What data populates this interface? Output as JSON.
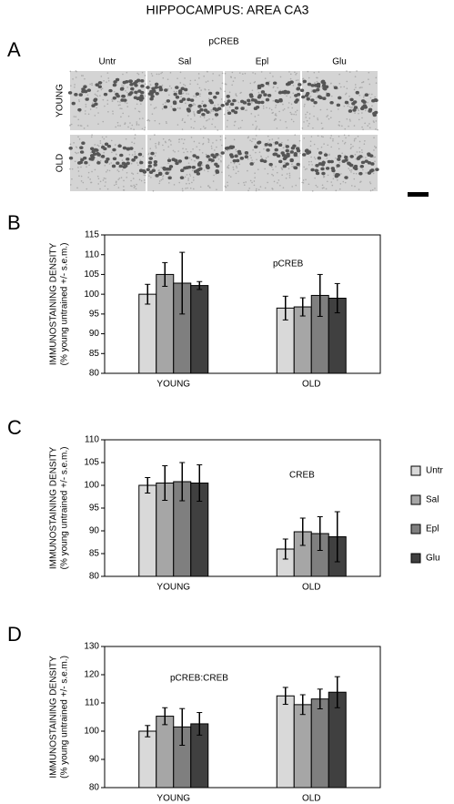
{
  "figure": {
    "title": "HIPPOCAMPUS: AREA CA3",
    "panel_a": {
      "label": "A",
      "title": "pCREB",
      "columns": [
        "Untr",
        "Sal",
        "Epl",
        "Glu"
      ],
      "rows": [
        "YOUNG",
        "OLD"
      ]
    }
  },
  "chart_data": [
    {
      "type": "bar",
      "panel": "B",
      "annotation": "pCREB",
      "ylabel": [
        "IMMUNOSTAINING DENSITY",
        "(% young untrained +/- s.e.m.)"
      ],
      "categories": [
        "YOUNG",
        "OLD"
      ],
      "ylim": [
        80,
        115
      ],
      "yticks": [
        80,
        85,
        90,
        95,
        100,
        105,
        110,
        115
      ],
      "series": [
        {
          "color": "#d9d9d9",
          "values": [
            100,
            96.5
          ],
          "errors": [
            2.5,
            3
          ]
        },
        {
          "color": "#a6a6a6",
          "values": [
            105,
            96.8
          ],
          "errors": [
            3,
            2.3
          ]
        },
        {
          "color": "#7f7f7f",
          "values": [
            102.8,
            99.7
          ],
          "errors": [
            7.8,
            5.3
          ]
        },
        {
          "color": "#404040",
          "values": [
            102.2,
            99
          ],
          "errors": [
            1,
            3.7
          ]
        }
      ]
    },
    {
      "type": "bar",
      "panel": "C",
      "annotation": "CREB",
      "ylabel": [
        "IMMUNOSTAINING DENSITY",
        "(% young untrained +/- s.e.m.)"
      ],
      "categories": [
        "YOUNG",
        "OLD"
      ],
      "ylim": [
        80,
        110
      ],
      "yticks": [
        80,
        85,
        90,
        95,
        100,
        105,
        110
      ],
      "legend": "right",
      "series": [
        {
          "name": "Untr",
          "color": "#d9d9d9",
          "values": [
            100,
            86
          ],
          "errors": [
            1.7,
            2.2
          ]
        },
        {
          "name": "Sal",
          "color": "#a6a6a6",
          "values": [
            100.5,
            89.8
          ],
          "errors": [
            3.8,
            3
          ]
        },
        {
          "name": "Epl",
          "color": "#7f7f7f",
          "values": [
            100.8,
            89.4
          ],
          "errors": [
            4.2,
            3.7
          ]
        },
        {
          "name": "Glu",
          "color": "#404040",
          "values": [
            100.5,
            88.7
          ],
          "errors": [
            4,
            5.5
          ]
        }
      ]
    },
    {
      "type": "bar",
      "panel": "D",
      "annotation": "pCREB:CREB",
      "ylabel": [
        "IMMUNOSTAINING DENSITY",
        "(% young untrained +/- s.e.m.)"
      ],
      "categories": [
        "YOUNG",
        "OLD"
      ],
      "ylim": [
        80,
        130
      ],
      "yticks": [
        80,
        90,
        100,
        110,
        120,
        130
      ],
      "series": [
        {
          "color": "#d9d9d9",
          "values": [
            100,
            112.5
          ],
          "errors": [
            2,
            3
          ]
        },
        {
          "color": "#a6a6a6",
          "values": [
            105.3,
            109.4
          ],
          "errors": [
            3,
            3.5
          ]
        },
        {
          "color": "#7f7f7f",
          "values": [
            101.5,
            111.4
          ],
          "errors": [
            6.5,
            3.5
          ]
        },
        {
          "color": "#404040",
          "values": [
            102.6,
            113.8
          ],
          "errors": [
            4,
            5.5
          ]
        }
      ]
    }
  ]
}
